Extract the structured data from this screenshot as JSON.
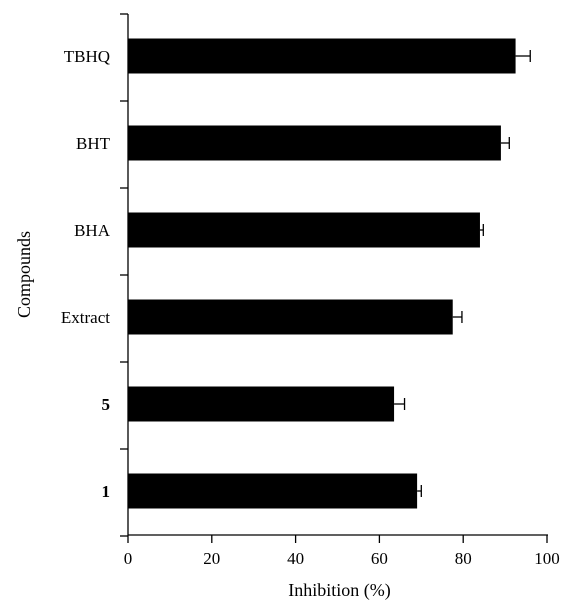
{
  "chart_data": {
    "type": "bar",
    "orientation": "horizontal",
    "categories": [
      "TBHQ",
      "BHT",
      "BHA",
      "Extract",
      "5",
      "1"
    ],
    "bold_categories": [
      "5",
      "1"
    ],
    "values": [
      92.5,
      89,
      84,
      77.5,
      63.5,
      69
    ],
    "errors": [
      3.5,
      2,
      0.8,
      2.2,
      2.5,
      1
    ],
    "xlabel": "Inhibition (%)",
    "ylabel": "Compounds",
    "xlim": [
      0,
      100
    ],
    "xticks": [
      0,
      20,
      40,
      60,
      80,
      100
    ],
    "bar_color": "#000000",
    "grid": false,
    "legend": "none"
  }
}
